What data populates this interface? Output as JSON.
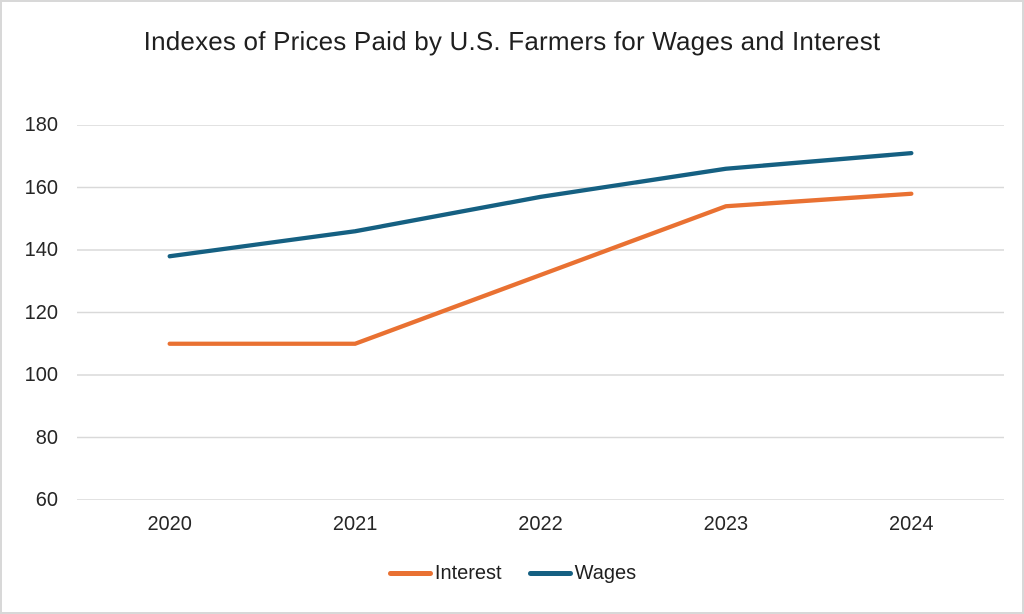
{
  "window": {
    "background": "#FFFFFF",
    "border_color": "#D8D8D8"
  },
  "chart_data": {
    "type": "line",
    "title": "Indexes of Prices Paid by U.S. Farmers for Wages and Interest",
    "categories": [
      "2020",
      "2021",
      "2022",
      "2023",
      "2024"
    ],
    "series": [
      {
        "name": "Interest",
        "color": "#E97132",
        "values": [
          110,
          110,
          132,
          154,
          158
        ]
      },
      {
        "name": "Wages",
        "color": "#156082",
        "values": [
          138,
          146,
          157,
          166,
          171
        ]
      }
    ],
    "xlabel": "",
    "ylabel": "",
    "ylim": [
      60,
      180
    ],
    "yticks": [
      60,
      80,
      100,
      120,
      140,
      160,
      180
    ],
    "grid": true,
    "gridline_color": "#D9D9D9",
    "axis_label_color": "#262626",
    "title_color": "#1F1F1F",
    "legend_position": "bottom"
  }
}
